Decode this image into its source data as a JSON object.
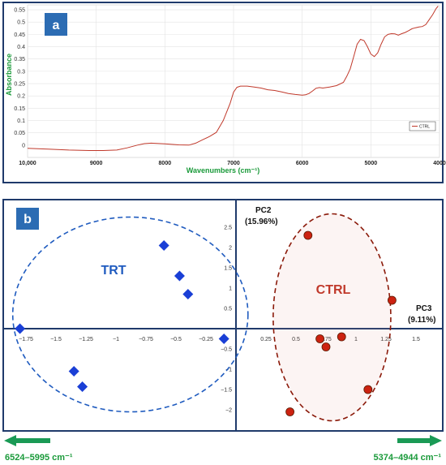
{
  "chart_data": [
    {
      "type": "line",
      "panel_label": "a",
      "ylabel": "Absorbance",
      "xlabel": "Wavenumbers (cm⁻¹)",
      "xlim": [
        10000,
        4000
      ],
      "ylim": [
        -0.05,
        0.57
      ],
      "x_ticks": [
        "10,000",
        "9000",
        "8000",
        "7000",
        "6000",
        "5000",
        "4000"
      ],
      "x_tick_values": [
        10000,
        9000,
        8000,
        7000,
        6000,
        5000,
        4000
      ],
      "y_ticks": [
        "0",
        "0.05",
        "0.1",
        "0.15",
        "0.2",
        "0.25",
        "0.3",
        "0.35",
        "0.4",
        "0.45",
        "0.5",
        "0.55"
      ],
      "y_tick_values": [
        0,
        0.05,
        0.1,
        0.15,
        0.2,
        0.25,
        0.3,
        0.35,
        0.4,
        0.45,
        0.5,
        0.55
      ],
      "series": [
        {
          "name": "CTRL",
          "color": "#c0392b",
          "points": [
            [
              10000,
              -0.013
            ],
            [
              9700,
              -0.016
            ],
            [
              9400,
              -0.02
            ],
            [
              9100,
              -0.022
            ],
            [
              8900,
              -0.022
            ],
            [
              8700,
              -0.02
            ],
            [
              8550,
              -0.011
            ],
            [
              8400,
              0.0
            ],
            [
              8300,
              0.006
            ],
            [
              8200,
              0.008
            ],
            [
              8000,
              0.005
            ],
            [
              7800,
              0.001
            ],
            [
              7650,
              0.0
            ],
            [
              7550,
              0.008
            ],
            [
              7450,
              0.022
            ],
            [
              7350,
              0.035
            ],
            [
              7250,
              0.052
            ],
            [
              7150,
              0.1
            ],
            [
              7050,
              0.17
            ],
            [
              7000,
              0.215
            ],
            [
              6950,
              0.235
            ],
            [
              6900,
              0.24
            ],
            [
              6800,
              0.24
            ],
            [
              6700,
              0.236
            ],
            [
              6600,
              0.232
            ],
            [
              6500,
              0.225
            ],
            [
              6400,
              0.222
            ],
            [
              6300,
              0.216
            ],
            [
              6200,
              0.21
            ],
            [
              6100,
              0.206
            ],
            [
              6000,
              0.203
            ],
            [
              5950,
              0.205
            ],
            [
              5900,
              0.21
            ],
            [
              5850,
              0.22
            ],
            [
              5800,
              0.231
            ],
            [
              5750,
              0.234
            ],
            [
              5700,
              0.232
            ],
            [
              5650,
              0.234
            ],
            [
              5600,
              0.236
            ],
            [
              5500,
              0.242
            ],
            [
              5400,
              0.255
            ],
            [
              5350,
              0.28
            ],
            [
              5300,
              0.31
            ],
            [
              5250,
              0.36
            ],
            [
              5200,
              0.41
            ],
            [
              5150,
              0.43
            ],
            [
              5100,
              0.425
            ],
            [
              5050,
              0.4
            ],
            [
              5000,
              0.37
            ],
            [
              4950,
              0.36
            ],
            [
              4900,
              0.375
            ],
            [
              4850,
              0.41
            ],
            [
              4800,
              0.44
            ],
            [
              4750,
              0.45
            ],
            [
              4700,
              0.453
            ],
            [
              4650,
              0.452
            ],
            [
              4600,
              0.447
            ],
            [
              4550,
              0.453
            ],
            [
              4500,
              0.458
            ],
            [
              4450,
              0.465
            ],
            [
              4400,
              0.473
            ],
            [
              4350,
              0.477
            ],
            [
              4300,
              0.48
            ],
            [
              4250,
              0.482
            ],
            [
              4200,
              0.49
            ],
            [
              4150,
              0.51
            ],
            [
              4100,
              0.53
            ],
            [
              4050,
              0.555
            ],
            [
              4020,
              0.565
            ]
          ]
        }
      ]
    },
    {
      "type": "scatter",
      "panel_label": "b",
      "xlim": [
        -1.9,
        1.9
      ],
      "ylim": [
        -2.3,
        2.8
      ],
      "x_ticks_left": [
        "−1.75",
        "−1.5",
        "−1.25",
        "−1",
        "−0.75",
        "−0.5",
        "−0.25"
      ],
      "x_tick_values_left": [
        -1.75,
        -1.5,
        -1.25,
        -1,
        -0.75,
        -0.5,
        -0.25
      ],
      "x_ticks_right": [
        "0.25",
        "0.5",
        "0.75",
        "1",
        "1.25",
        "1.5"
      ],
      "x_tick_values_right": [
        0.25,
        0.5,
        0.75,
        1,
        1.25,
        1.5
      ],
      "y_ticks": [
        "2.5",
        "2",
        "1.5",
        "1",
        "0.5",
        "−0.5",
        "−1",
        "−1.5",
        "−2"
      ],
      "y_tick_values": [
        2.5,
        2,
        1.5,
        1,
        0.5,
        -0.5,
        -1,
        -1.5,
        -2
      ],
      "axis_y_label": "PC2",
      "axis_y_label_sub": "(15.96%)",
      "axis_x_label": "PC3",
      "axis_x_label_sub": "(9.11%)",
      "series": [
        {
          "name": "TRT",
          "marker": "diamond",
          "color": "#1a3fd6",
          "label_color": "#1f5bbf",
          "ellipse_center": [
            -0.88,
            0.35
          ],
          "ellipse_radii": [
            0.98,
            2.4
          ],
          "points": [
            [
              -1.8,
              0.0
            ],
            [
              -0.6,
              2.05
            ],
            [
              -0.47,
              1.3
            ],
            [
              -0.4,
              0.85
            ],
            [
              -1.35,
              -1.05
            ],
            [
              -1.28,
              -1.43
            ],
            [
              -0.1,
              -0.25
            ]
          ]
        },
        {
          "name": "CTRL",
          "marker": "circle",
          "color": "#cc2211",
          "label_color": "#c0392b",
          "ellipse_center": [
            0.8,
            0.28
          ],
          "ellipse_radii": [
            0.49,
            2.55
          ],
          "points": [
            [
              0.6,
              2.3
            ],
            [
              1.3,
              0.7
            ],
            [
              0.7,
              -0.25
            ],
            [
              0.88,
              -0.2
            ],
            [
              0.75,
              -0.45
            ],
            [
              1.1,
              -1.5
            ],
            [
              0.45,
              -2.05
            ]
          ]
        }
      ]
    }
  ],
  "footer": {
    "left_label": "6524–5995  cm⁻¹",
    "right_label": "5374–4944  cm⁻¹",
    "arrow_color": "#1a9a55"
  }
}
